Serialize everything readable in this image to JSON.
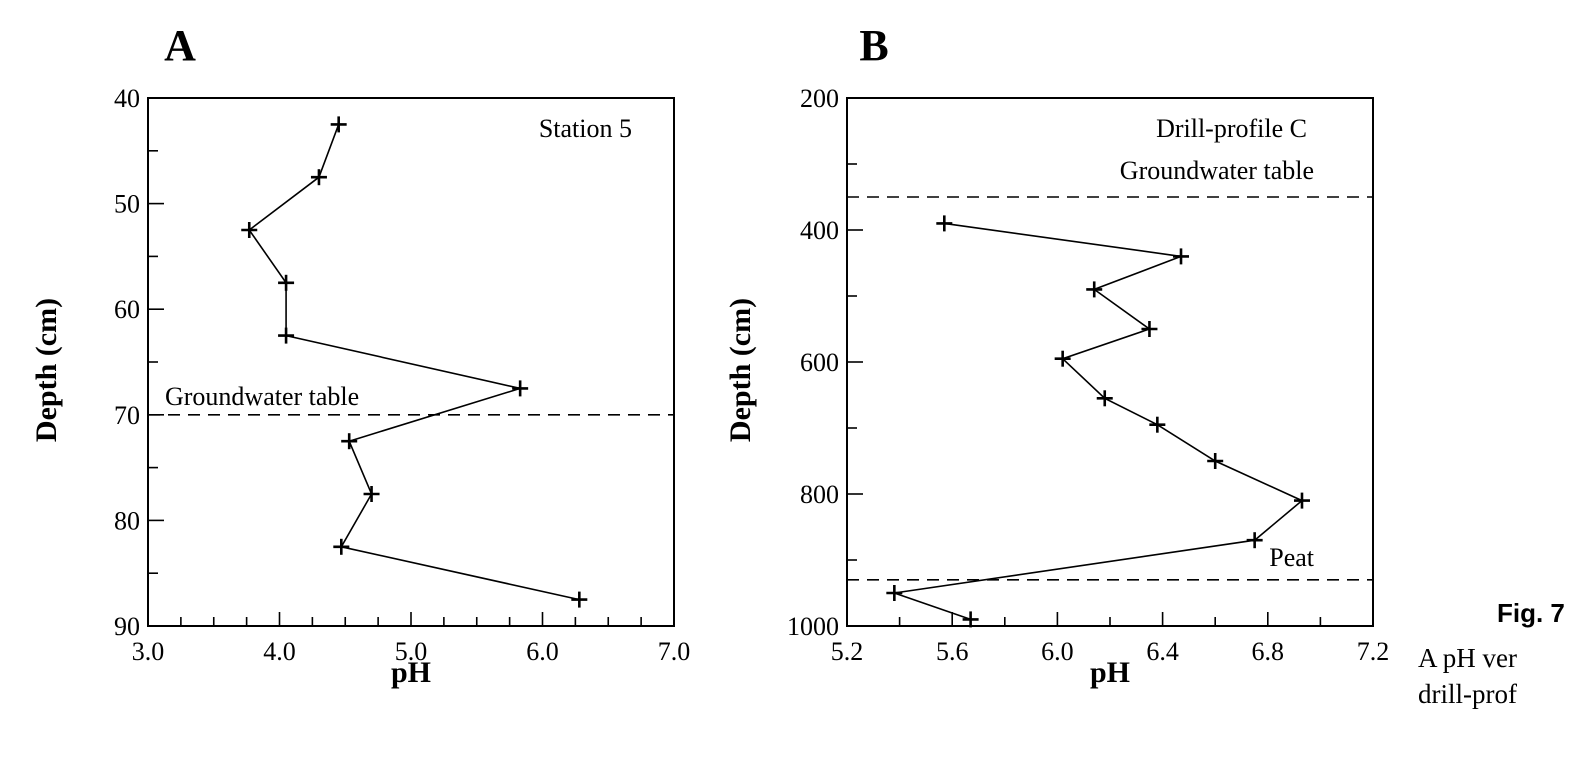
{
  "chart_data": [
    {
      "type": "line",
      "panel_label": "A",
      "annotation": "Station 5",
      "xlabel": "pH",
      "ylabel": "Depth (cm)",
      "xlim": [
        3.0,
        7.0
      ],
      "ylim": [
        40,
        90
      ],
      "y_inverted": true,
      "x_ticks": [
        "3.0",
        "4.0",
        "5.0",
        "6.0",
        "7.0"
      ],
      "y_ticks": [
        "40",
        "50",
        "60",
        "70",
        "80",
        "90"
      ],
      "reference_lines": [
        {
          "label": "Groundwater table",
          "depth": 70
        }
      ],
      "series": [
        {
          "name": "pH",
          "marker": "+",
          "x": [
            4.45,
            4.3,
            3.77,
            4.05,
            4.05,
            5.83,
            4.53,
            4.7,
            4.47,
            6.28
          ],
          "y": [
            42.5,
            47.5,
            52.5,
            57.5,
            62.5,
            67.5,
            72.5,
            77.5,
            82.5,
            87.5
          ]
        }
      ]
    },
    {
      "type": "line",
      "panel_label": "B",
      "annotation": "Drill-profile C",
      "xlabel": "pH",
      "ylabel": "Depth (cm)",
      "xlim": [
        5.2,
        7.2
      ],
      "ylim": [
        200,
        1000
      ],
      "y_inverted": true,
      "x_ticks": [
        "5.2",
        "5.6",
        "6.0",
        "6.4",
        "6.8",
        "7.2"
      ],
      "y_ticks": [
        "200",
        "400",
        "600",
        "800",
        "1000"
      ],
      "reference_lines": [
        {
          "label": "Groundwater table",
          "depth": 350
        },
        {
          "label": "Peat",
          "depth": 930
        }
      ],
      "series": [
        {
          "name": "pH",
          "marker": "+",
          "x": [
            5.57,
            6.47,
            6.14,
            6.35,
            6.02,
            6.18,
            6.38,
            6.6,
            6.93,
            6.75,
            5.38,
            5.67
          ],
          "y": [
            390,
            440,
            490,
            550,
            595,
            655,
            695,
            750,
            810,
            870,
            950,
            990
          ]
        }
      ]
    }
  ],
  "caption": {
    "fig_label": "Fig. 7",
    "line1": "A pH ver",
    "line2": "drill-prof"
  }
}
